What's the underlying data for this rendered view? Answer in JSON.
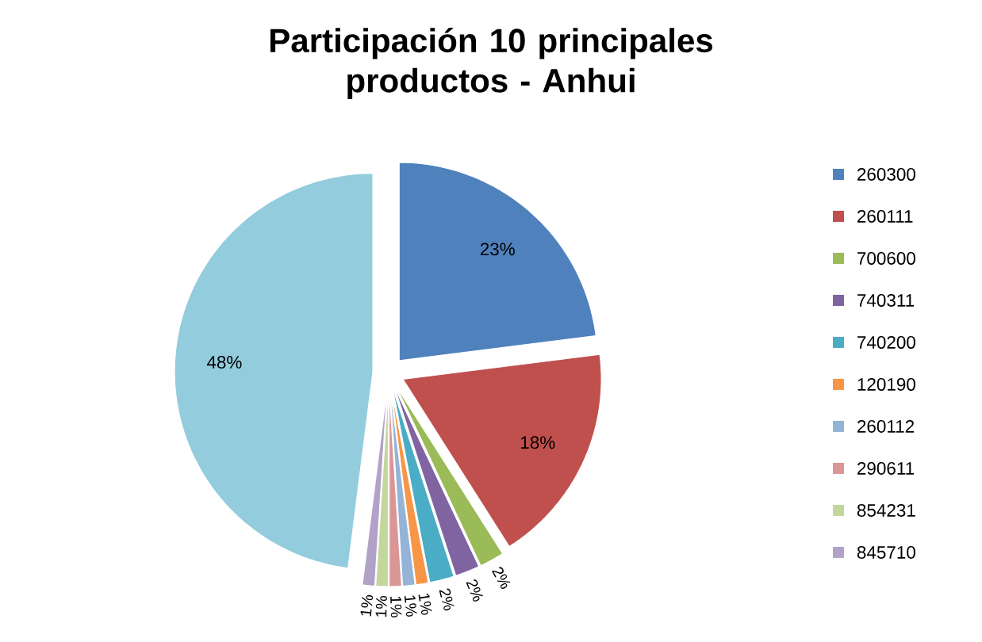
{
  "chart_data": {
    "type": "pie",
    "title": "Participación 10 principales productos - Anhui",
    "categories": [
      "260300",
      "260111",
      "700600",
      "740311",
      "740200",
      "120190",
      "260112",
      "290611",
      "854231",
      "845710",
      null
    ],
    "values": [
      23,
      18,
      2,
      2,
      2,
      1,
      1,
      1,
      1,
      1,
      48
    ],
    "value_labels": [
      "23%",
      "18%",
      "2%",
      "2%",
      "2%",
      "1%",
      "1%",
      "1%",
      "1%",
      "1%",
      "48%"
    ],
    "colors": [
      "#4f81bd",
      "#c0504d",
      "#9bbb59",
      "#8064a2",
      "#4bacc6",
      "#f79646",
      "#95b3d7",
      "#d99694",
      "#c3d69b",
      "#b2a2c7",
      "#93cddd"
    ],
    "legend": "right"
  }
}
